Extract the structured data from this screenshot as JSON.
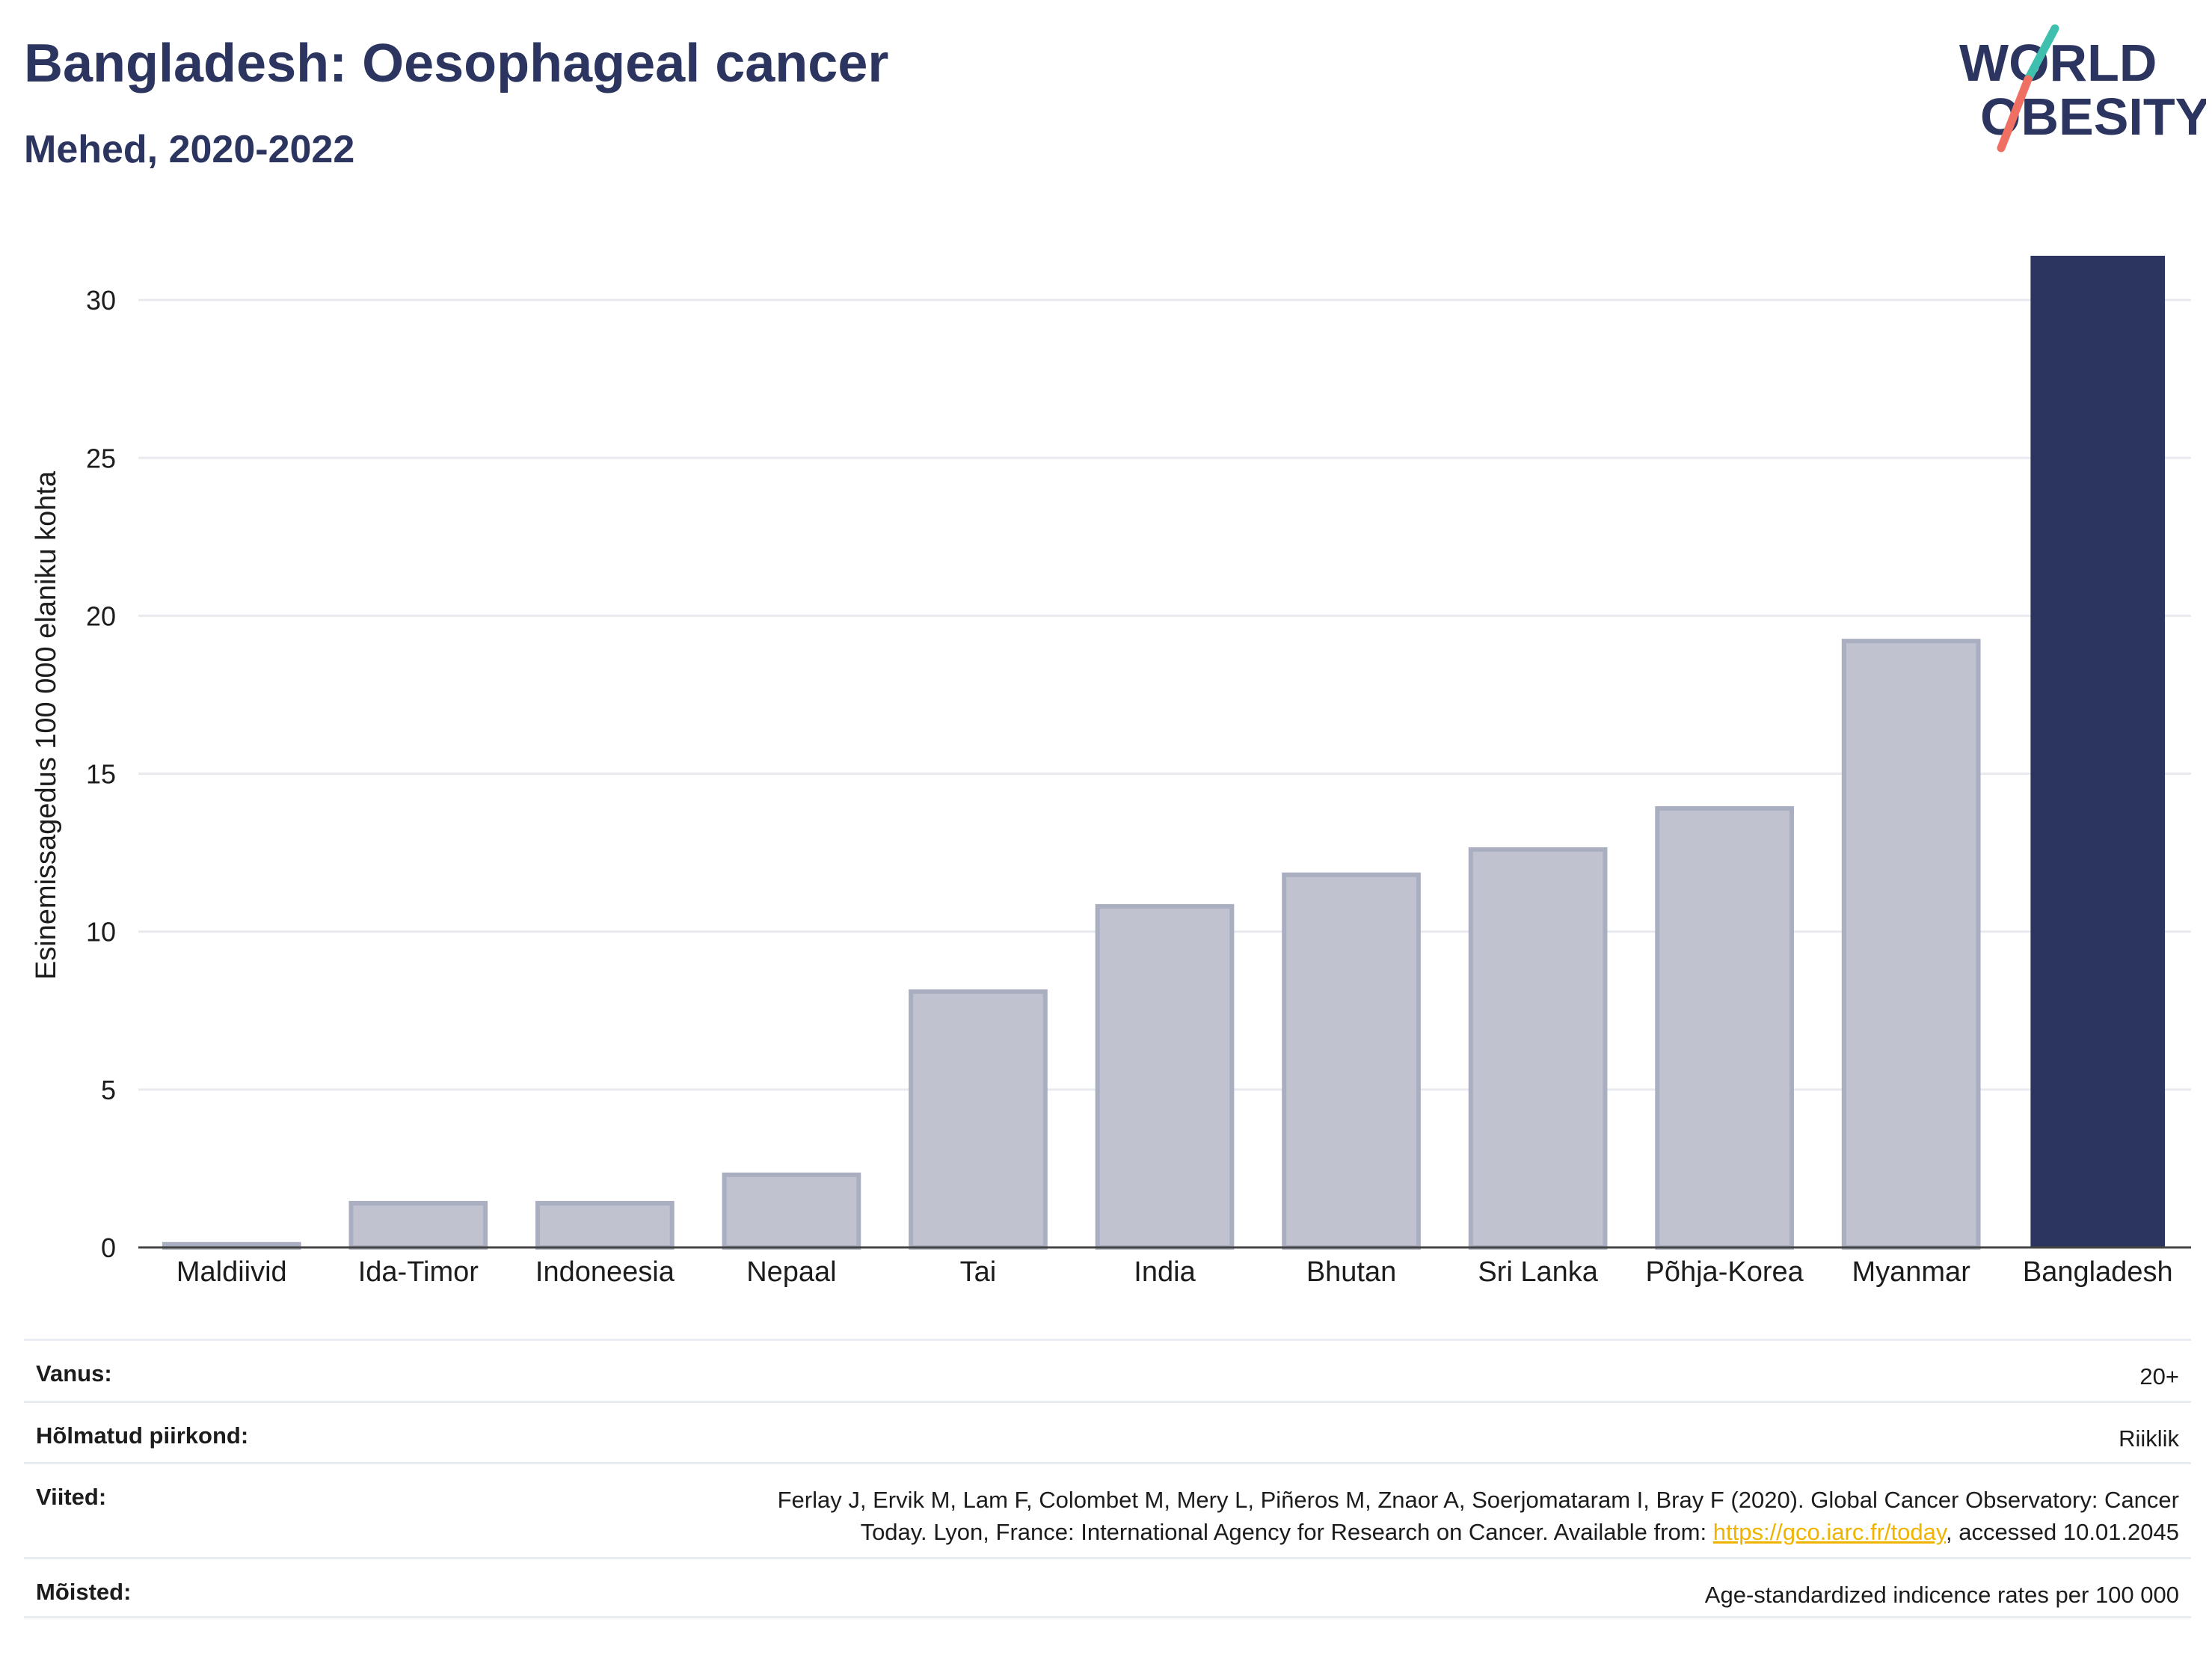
{
  "header": {
    "title": "Bangladesh: Oesophageal cancer",
    "subtitle": "Mehed, 2020-2022"
  },
  "logo": {
    "line1": "WORLD",
    "line2": "OBESITY",
    "accent_teal": "#3fbfad",
    "accent_coral": "#ef6f63"
  },
  "chart_data": {
    "type": "bar",
    "categories": [
      "Maldiivid",
      "Ida-Timor",
      "Indoneesia",
      "Nepaal",
      "Tai",
      "India",
      "Bhutan",
      "Sri Lanka",
      "Põhja-Korea",
      "Myanmar",
      "Bangladesh"
    ],
    "values": [
      0.1,
      1.4,
      1.4,
      2.3,
      8.1,
      10.8,
      11.8,
      12.6,
      13.9,
      19.2,
      31.4
    ],
    "highlight": "Bangladesh",
    "title": "",
    "xlabel": "",
    "ylabel": "Esinemissagedus 100 000 elaniku kohta",
    "yticks": [
      0,
      5,
      10,
      15,
      20,
      25,
      30
    ],
    "ylim": [
      0,
      31.4
    ],
    "grid": true,
    "colors": {
      "highlight": "#2b3560",
      "other": "#c0c3cf",
      "other_outline": "#a9aec0",
      "grid": "#e8eaf0",
      "axis": "#444444"
    }
  },
  "meta": {
    "age_label": "Vanus:",
    "age_value": "20+",
    "region_label": "Hõlmatud piirkond:",
    "region_value": "Riiklik",
    "refs_label": "Viited:",
    "refs_line1": "Ferlay J, Ervik M, Lam F, Colombet M, Mery L, Piñeros M, Znaor A, Soerjomataram I, Bray F (2020). Global Cancer Observatory: Cancer",
    "refs_line2_pre": "Today. Lyon, France: International Agency for Research on Cancer. Available from: ",
    "refs_link": "https://gco.iarc.fr/today",
    "refs_line2_post": ", accessed 10.01.2045",
    "def_label": "Mõisted:",
    "def_value": "Age-standardized indicence rates per 100 000"
  }
}
